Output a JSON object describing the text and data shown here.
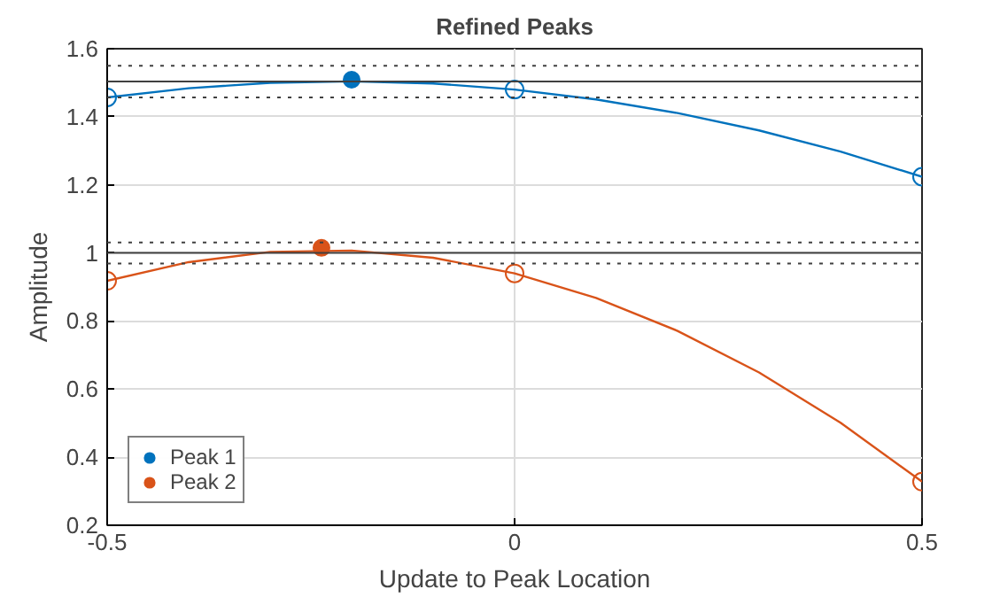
{
  "chart_data": {
    "type": "line",
    "title": "Refined Peaks",
    "xlabel": "Update to Peak Location",
    "ylabel": "Amplitude",
    "xlim": [
      -0.5,
      0.5
    ],
    "ylim": [
      0.2,
      1.6
    ],
    "xticks": [
      -0.5,
      0,
      0.5
    ],
    "yticks": [
      0.2,
      0.4,
      0.6,
      0.8,
      1,
      1.2,
      1.4,
      1.6
    ],
    "grid": true,
    "legend": "bottom left",
    "series": [
      {
        "marker": "none",
        "color": "#0072bd",
        "x": [
          -0.5,
          -0.4,
          -0.3,
          -0.2,
          -0.1,
          0,
          0.1,
          0.2,
          0.3,
          0.4,
          0.5
        ],
        "values": [
          1.457,
          1.484,
          1.5,
          1.504,
          1.498,
          1.48,
          1.451,
          1.411,
          1.36,
          1.298,
          1.224
        ]
      },
      {
        "marker": "none",
        "color": "#d95319",
        "x": [
          -0.5,
          -0.4,
          -0.3,
          -0.2,
          -0.1,
          0,
          0.1,
          0.2,
          0.3,
          0.4,
          0.5
        ],
        "values": [
          0.918,
          0.973,
          1.003,
          1.007,
          0.986,
          0.94,
          0.868,
          0.771,
          0.649,
          0.501,
          0.328
        ]
      },
      {
        "type": "scatter",
        "marker": "circle",
        "color": "#0072bd",
        "x": [
          -0.5,
          0,
          0.5
        ],
        "values": [
          1.457,
          1.48,
          1.224
        ]
      },
      {
        "type": "scatter",
        "marker": "circle",
        "color": "#d95319",
        "x": [
          -0.5,
          0,
          0.5
        ],
        "values": [
          0.918,
          0.94,
          0.328
        ]
      },
      {
        "type": "scatter",
        "marker": "circle",
        "name": "Peak 1",
        "color": "#0072bd",
        "x": [
          -0.2
        ],
        "values": [
          1.509
        ]
      },
      {
        "type": "scatter",
        "marker": "circle",
        "name": "Peak 2",
        "color": "#d95319",
        "x": [
          -0.237
        ],
        "values": [
          1.015
        ]
      }
    ],
    "ref_lines": [
      {
        "axis": "y",
        "value": 1.55,
        "color": "#404040",
        "line_style": "dotted"
      },
      {
        "axis": "y",
        "value": 1.504,
        "color": "#404040",
        "line_style": "solid"
      },
      {
        "axis": "y",
        "value": 1.457,
        "color": "#404040",
        "line_style": "dotted"
      },
      {
        "axis": "y",
        "value": 1.031,
        "color": "#404040",
        "line_style": "dotted"
      },
      {
        "axis": "y",
        "value": 1.0,
        "color": "#404040",
        "line_style": "solid"
      },
      {
        "axis": "y",
        "value": 0.969,
        "color": "#404040",
        "line_style": "dotted"
      }
    ]
  }
}
